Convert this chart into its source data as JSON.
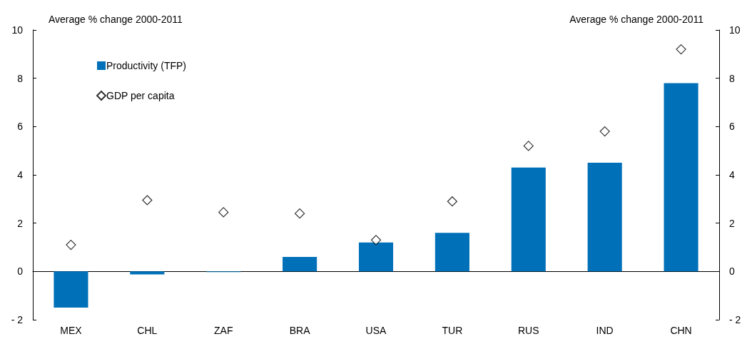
{
  "chart_data": {
    "type": "bar",
    "ylabel": "Average % change 2000-2011",
    "y2label": "Average % change 2000-2011",
    "categories": [
      "MEX",
      "CHL",
      "ZAF",
      "BRA",
      "USA",
      "TUR",
      "RUS",
      "IND",
      "CHN"
    ],
    "series": [
      {
        "name": "Productivity (TFP)",
        "color": "#0070b8",
        "values": [
          -1.5,
          -0.12,
          -0.03,
          0.6,
          1.2,
          1.6,
          4.3,
          4.5,
          7.8
        ]
      },
      {
        "name": "GDP per capita",
        "type": "scatter",
        "color": "#000000",
        "x": [
          "MEX",
          "CHL",
          "ZAF",
          "BRA",
          "USA",
          "TUR",
          "RUS",
          "IND",
          "CHN"
        ],
        "values": [
          1.1,
          2.95,
          2.45,
          2.4,
          1.3,
          2.9,
          5.2,
          5.8,
          9.2
        ]
      }
    ],
    "marker": "diamond",
    "ylim": [
      -2,
      10
    ],
    "yticks": [
      {
        "value": -2,
        "label": "- 2"
      },
      0,
      2,
      4,
      6,
      8,
      10
    ],
    "y2lim": [
      -2,
      10
    ],
    "y2ticks": [
      {
        "value": -2,
        "label": "- 2"
      },
      0,
      2,
      4,
      6,
      8,
      10
    ],
    "legend": "top left"
  }
}
